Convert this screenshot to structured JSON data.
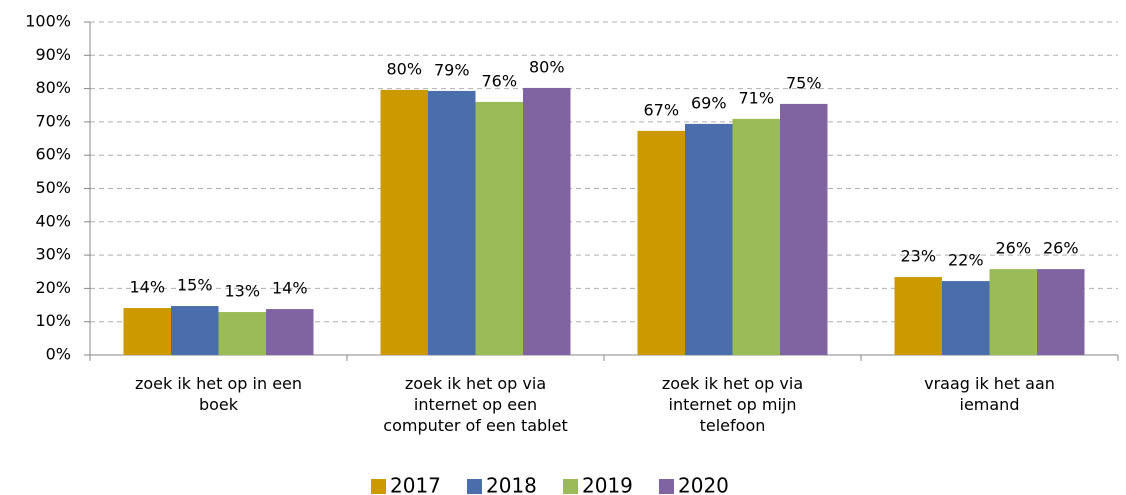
{
  "chart_data": {
    "type": "bar",
    "categories": [
      "zoek ik het op in een\nboek",
      "zoek ik het op via\ninternet op een\ncomputer of een tablet",
      "zoek ik het op via\ninternet op mijn\ntelefoon",
      "vraag ik het aan\niemand"
    ],
    "series": [
      {
        "name": "2017",
        "color": "#cc9900",
        "values": [
          14.1,
          79.6,
          67.3,
          23.4
        ],
        "value_labels": [
          "14%",
          "80%",
          "67%",
          "23%"
        ]
      },
      {
        "name": "2018",
        "color": "#4a6eab",
        "values": [
          14.7,
          79.3,
          69.4,
          22.2
        ],
        "value_labels": [
          "15%",
          "79%",
          "69%",
          "22%"
        ]
      },
      {
        "name": "2019",
        "color": "#9bbb59",
        "values": [
          12.9,
          76.0,
          70.9,
          25.8
        ],
        "value_labels": [
          "13%",
          "76%",
          "71%",
          "26%"
        ]
      },
      {
        "name": "2020",
        "color": "#8064a2",
        "values": [
          13.8,
          80.2,
          75.4,
          25.8
        ],
        "value_labels": [
          "14%",
          "80%",
          "75%",
          "26%"
        ]
      }
    ],
    "ylim": [
      0,
      100
    ],
    "yticks": [
      {
        "value": 0,
        "label": "0%"
      },
      {
        "value": 10,
        "label": "10%"
      },
      {
        "value": 20,
        "label": "20%"
      },
      {
        "value": 30,
        "label": "30%"
      },
      {
        "value": 40,
        "label": "40%"
      },
      {
        "value": 50,
        "label": "50%"
      },
      {
        "value": 60,
        "label": "60%"
      },
      {
        "value": 70,
        "label": "70%"
      },
      {
        "value": 80,
        "label": "80%"
      },
      {
        "value": 90,
        "label": "90%"
      },
      {
        "value": 100,
        "label": "100%"
      }
    ],
    "grid": true,
    "legend": "bottom"
  }
}
